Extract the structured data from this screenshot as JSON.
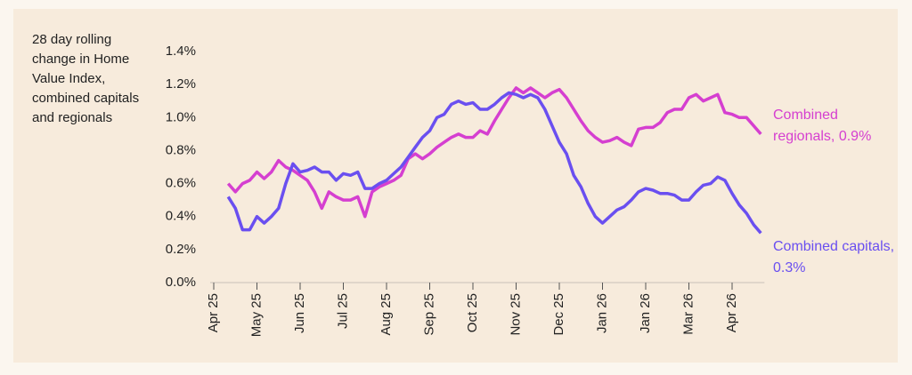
{
  "chart_data": {
    "type": "line",
    "y_axis_label": "28 day rolling change in Home Value Index, combined capitals and regionals",
    "categories": [
      "Apr 25",
      null,
      null,
      null,
      null,
      null,
      "May 25",
      null,
      null,
      null,
      null,
      null,
      "Jun 25",
      null,
      null,
      null,
      null,
      null,
      "Jul 25",
      null,
      null,
      null,
      null,
      null,
      "Aug 25",
      null,
      null,
      null,
      null,
      null,
      "Sep 25",
      null,
      null,
      null,
      null,
      null,
      "Oct 25",
      null,
      null,
      null,
      null,
      null,
      "Nov 25",
      null,
      null,
      null,
      null,
      null,
      "Dec 25",
      null,
      null,
      null,
      null,
      null,
      "Jan 26",
      null,
      null,
      null,
      null,
      null,
      "Jan 26",
      null,
      null,
      null,
      null,
      null,
      "Mar 26",
      null,
      null,
      null,
      null,
      null,
      "Apr 26",
      null,
      null,
      null,
      null
    ],
    "series": [
      {
        "name": "Combined regionals, 0.9%",
        "color": "#d53fd0",
        "values": [
          null,
          null,
          0.6,
          0.55,
          0.6,
          0.62,
          0.67,
          0.63,
          0.67,
          0.74,
          0.7,
          0.68,
          0.65,
          0.62,
          0.55,
          0.45,
          0.55,
          0.52,
          0.5,
          0.5,
          0.52,
          0.4,
          0.55,
          0.58,
          0.6,
          0.62,
          0.65,
          0.75,
          0.78,
          0.75,
          0.78,
          0.82,
          0.85,
          0.88,
          0.9,
          0.88,
          0.88,
          0.92,
          0.9,
          0.98,
          1.05,
          1.12,
          1.18,
          1.15,
          1.18,
          1.15,
          1.12,
          1.15,
          1.17,
          1.12,
          1.05,
          0.98,
          0.92,
          0.88,
          0.85,
          0.86,
          0.88,
          0.85,
          0.83,
          0.93,
          0.94,
          0.94,
          0.97,
          1.03,
          1.05,
          1.05,
          1.12,
          1.14,
          1.1,
          1.12,
          1.14,
          1.03,
          1.02,
          1.0,
          1.0,
          0.95,
          0.9
        ]
      },
      {
        "name": "Combined capitals, 0.3%",
        "color": "#6a4ff0",
        "values": [
          null,
          null,
          0.52,
          0.45,
          0.32,
          0.32,
          0.4,
          0.36,
          0.4,
          0.45,
          0.6,
          0.72,
          0.67,
          0.68,
          0.7,
          0.67,
          0.67,
          0.62,
          0.66,
          0.65,
          0.67,
          0.57,
          0.57,
          0.6,
          0.62,
          0.66,
          0.7,
          0.76,
          0.82,
          0.88,
          0.92,
          1.0,
          1.02,
          1.08,
          1.1,
          1.08,
          1.09,
          1.05,
          1.05,
          1.08,
          1.12,
          1.15,
          1.14,
          1.12,
          1.14,
          1.12,
          1.05,
          0.95,
          0.85,
          0.78,
          0.65,
          0.58,
          0.48,
          0.4,
          0.36,
          0.4,
          0.44,
          0.46,
          0.5,
          0.55,
          0.57,
          0.56,
          0.54,
          0.54,
          0.53,
          0.5,
          0.5,
          0.55,
          0.59,
          0.6,
          0.64,
          0.62,
          0.54,
          0.47,
          0.42,
          0.35,
          0.3
        ]
      }
    ],
    "ylim": [
      0,
      1.4
    ],
    "yticks": [
      {
        "value": 0,
        "label": "0.0%"
      },
      {
        "value": 0.2,
        "label": "0.2%"
      },
      {
        "value": 0.4,
        "label": "0.4%"
      },
      {
        "value": 0.6,
        "label": "0.6%"
      },
      {
        "value": 0.8,
        "label": "0.8%"
      },
      {
        "value": 1.0,
        "label": "1.0%"
      },
      {
        "value": 1.2,
        "label": "1.2%"
      },
      {
        "value": 1.4,
        "label": "1.4%"
      }
    ],
    "grid": false
  }
}
